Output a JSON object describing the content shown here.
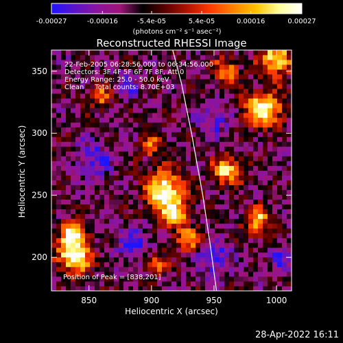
{
  "footer_timestamp": "28-Apr-2022 16:11",
  "colorbar": {
    "ticks": [
      "-0.00027",
      "-0.00016",
      "-5.4e-05",
      "5.4e-05",
      "0.00016",
      "0.00027"
    ],
    "tick_values": [
      -0.00027,
      -0.00016,
      -5.4e-05,
      5.4e-05,
      0.00016,
      0.00027
    ],
    "range": [
      -0.00027,
      0.00027
    ],
    "units_label": "(photons cm⁻² s⁻¹ asec⁻²)",
    "colors": [
      "#1e14ff",
      "#5a14c8",
      "#8c14a0",
      "#a01478",
      "#000000",
      "#5a0000",
      "#b41400",
      "#ff3c00",
      "#ff8200",
      "#ffc300",
      "#ffff9b",
      "#ffffff"
    ]
  },
  "chart_data": {
    "type": "heatmap",
    "title": "Reconstructed RHESSI Image",
    "xlabel": "Heliocentric X (arcsec)",
    "ylabel": "Heliocentric Y (arcsec)",
    "xlim": [
      820,
      1012
    ],
    "ylim": [
      173,
      367
    ],
    "x_ticks": [
      850,
      900,
      950,
      1000
    ],
    "y_ticks": [
      200,
      250,
      300,
      350
    ],
    "annotations": [
      "22-Feb-2005 06:28:56.000 to 06:34:56.000",
      "Detectors: 3F 4F 5F 6F 7F 8F, Att 0",
      "Energy Range: 25.0 - 50.0 keV",
      "Clean     Total counts: 8.70E+03"
    ],
    "peak_label": "Position of Peak = [838,201]",
    "peak_position": [
      838,
      201
    ],
    "limb_curve": [
      [
        917,
        367
      ],
      [
        924,
        340
      ],
      [
        932,
        300
      ],
      [
        941,
        250
      ],
      [
        947,
        210
      ],
      [
        952,
        173
      ]
    ],
    "bright_sources": [
      {
        "x": 838,
        "y": 201,
        "sigma": 9,
        "amp": 1.0
      },
      {
        "x": 838,
        "y": 220,
        "sigma": 7,
        "amp": 0.8
      },
      {
        "x": 910,
        "y": 255,
        "sigma": 11,
        "amp": 0.85
      },
      {
        "x": 918,
        "y": 235,
        "sigma": 8,
        "amp": 0.7
      },
      {
        "x": 900,
        "y": 290,
        "sigma": 6,
        "amp": 0.5
      },
      {
        "x": 930,
        "y": 215,
        "sigma": 7,
        "amp": 0.6
      },
      {
        "x": 960,
        "y": 270,
        "sigma": 8,
        "amp": 0.7
      },
      {
        "x": 990,
        "y": 320,
        "sigma": 10,
        "amp": 0.9
      },
      {
        "x": 1000,
        "y": 360,
        "sigma": 9,
        "amp": 0.8
      },
      {
        "x": 960,
        "y": 350,
        "sigma": 7,
        "amp": 0.6
      },
      {
        "x": 860,
        "y": 330,
        "sigma": 6,
        "amp": 0.5
      },
      {
        "x": 985,
        "y": 230,
        "sigma": 8,
        "amp": 0.6
      },
      {
        "x": 905,
        "y": 195,
        "sigma": 6,
        "amp": 0.5
      }
    ],
    "dark_regions": [
      {
        "x": 885,
        "y": 210,
        "sigma": 9,
        "amp": 0.9
      },
      {
        "x": 950,
        "y": 200,
        "sigma": 10,
        "amp": 0.8
      },
      {
        "x": 855,
        "y": 280,
        "sigma": 10,
        "amp": 0.7
      },
      {
        "x": 950,
        "y": 310,
        "sigma": 8,
        "amp": 0.7
      },
      {
        "x": 880,
        "y": 340,
        "sigma": 8,
        "amp": 0.6
      },
      {
        "x": 1005,
        "y": 200,
        "sigma": 8,
        "amp": 0.6
      }
    ]
  }
}
